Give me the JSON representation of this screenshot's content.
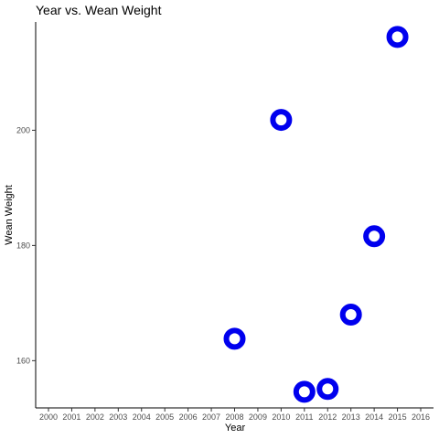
{
  "chart_data": {
    "type": "scatter",
    "title": "Year vs.  Wean Weight",
    "xlabel": "Year",
    "ylabel": "Wean Weight",
    "x_ticks": [
      "2000",
      "2001",
      "2002",
      "2003",
      "2004",
      "2005",
      "2006",
      "2007",
      "2008",
      "2009",
      "2010",
      "2011",
      "2012",
      "2013",
      "2014",
      "2015",
      "2016"
    ],
    "y_ticks": [
      160,
      180,
      200
    ],
    "xlim": [
      1999.45,
      2016.55
    ],
    "ylim": [
      151.8,
      218.8
    ],
    "grid": false,
    "point_color": "#0000ee",
    "points": [
      {
        "x": 2008,
        "y": 163.8
      },
      {
        "x": 2010,
        "y": 201.8
      },
      {
        "x": 2011,
        "y": 154.6
      },
      {
        "x": 2012,
        "y": 155.1
      },
      {
        "x": 2013,
        "y": 168.0
      },
      {
        "x": 2014,
        "y": 181.6
      },
      {
        "x": 2015,
        "y": 216.2
      }
    ]
  }
}
